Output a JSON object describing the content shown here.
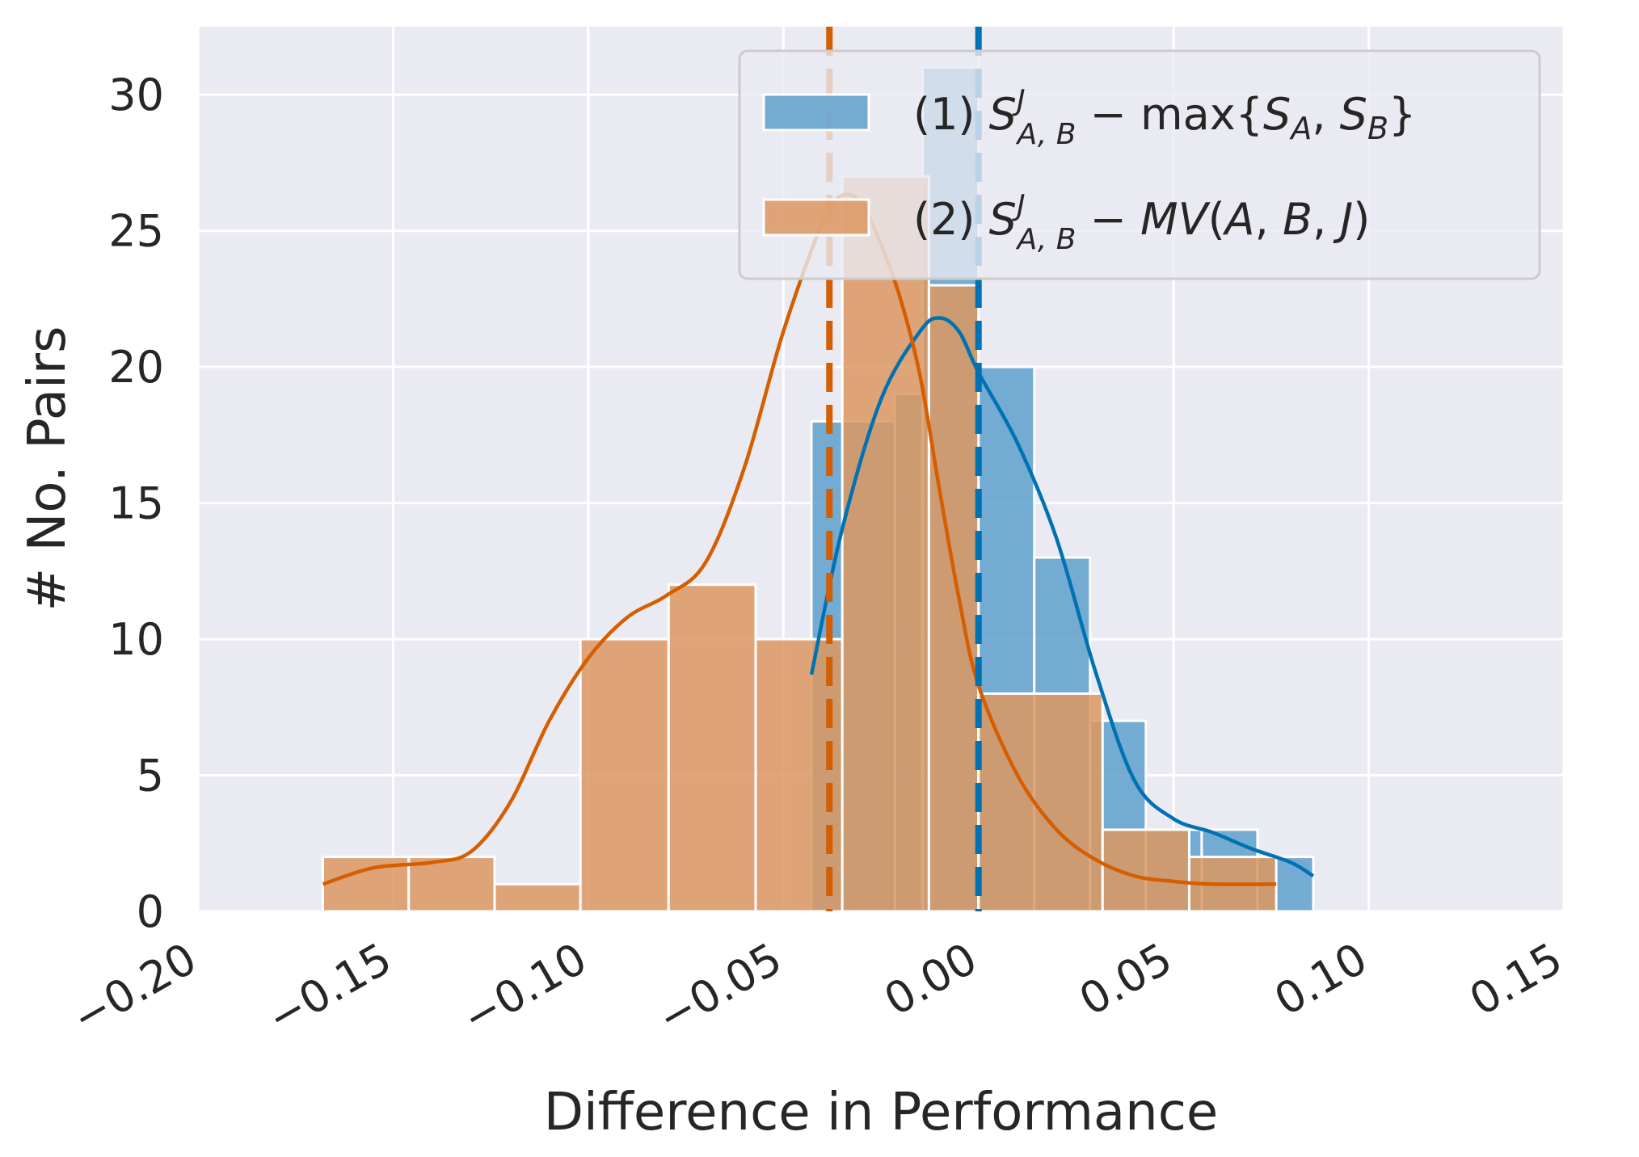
{
  "chart_data": {
    "type": "histogram",
    "title": "",
    "xlabel": "Difference in Performance",
    "ylabel": "# No. Pairs",
    "xlim": [
      -0.2,
      0.15
    ],
    "ylim": [
      0,
      32.5
    ],
    "grid": true,
    "legend_position": "top-right",
    "x_ticks": [
      -0.2,
      -0.15,
      -0.1,
      -0.05,
      0.0,
      0.05,
      0.1,
      0.15
    ],
    "x_tick_labels": [
      "−0.20",
      "−0.15",
      "−0.10",
      "−0.05",
      "0.00",
      "0.05",
      "0.10",
      "0.15"
    ],
    "y_ticks": [
      0,
      5,
      10,
      15,
      20,
      25,
      30
    ],
    "y_tick_labels": [
      "0",
      "5",
      "10",
      "15",
      "20",
      "25",
      "30"
    ],
    "series": [
      {
        "name": "(1) S^J_{A,B} − max{S_A, S_B}",
        "legend_parts": [
          "(1) ",
          "S",
          "J",
          "A, B",
          " − max{",
          "S",
          "A",
          ", ",
          "S",
          "B",
          "}"
        ],
        "color": "#0072B2",
        "bar_fill": "#5fa0cc",
        "bins": [
          {
            "x0": -0.0428,
            "x1": -0.0214,
            "count": 18
          },
          {
            "x0": -0.0214,
            "x1": -0.0143,
            "count": 19
          },
          {
            "x0": -0.0143,
            "x1": 0.0,
            "count": 31
          },
          {
            "x0": 0.0,
            "x1": 0.0143,
            "count": 20
          },
          {
            "x0": 0.0143,
            "x1": 0.0286,
            "count": 13
          },
          {
            "x0": 0.0286,
            "x1": 0.0429,
            "count": 7
          },
          {
            "x0": 0.0429,
            "x1": 0.0572,
            "count": 3
          },
          {
            "x0": 0.0572,
            "x1": 0.0715,
            "count": 3
          },
          {
            "x0": 0.0715,
            "x1": 0.0858,
            "count": 2
          }
        ],
        "kde": [
          [
            -0.0428,
            8.7
          ],
          [
            -0.035,
            14.0
          ],
          [
            -0.025,
            18.8
          ],
          [
            -0.015,
            21.3
          ],
          [
            -0.01,
            21.8
          ],
          [
            -0.005,
            21.3
          ],
          [
            0.0,
            19.8
          ],
          [
            0.01,
            17.2
          ],
          [
            0.02,
            13.7
          ],
          [
            0.03,
            8.8
          ],
          [
            0.04,
            4.8
          ],
          [
            0.05,
            3.4
          ],
          [
            0.06,
            2.9
          ],
          [
            0.07,
            2.3
          ],
          [
            0.08,
            1.8
          ],
          [
            0.0858,
            1.3
          ]
        ],
        "mean": 0.0
      },
      {
        "name": "(2) S^J_{A,B} − MV(A, B, J)",
        "legend_parts": [
          "(2) ",
          "S",
          "J",
          "A, B",
          " − ",
          "MV",
          "(",
          "A",
          ", ",
          "B",
          ", ",
          "J",
          ")"
        ],
        "color": "#D55E00",
        "bar_fill": "#dc9861",
        "bins": [
          {
            "x0": -0.168,
            "x1": -0.146,
            "count": 2
          },
          {
            "x0": -0.146,
            "x1": -0.124,
            "count": 2
          },
          {
            "x0": -0.124,
            "x1": -0.102,
            "count": 1
          },
          {
            "x0": -0.102,
            "x1": -0.0794,
            "count": 10
          },
          {
            "x0": -0.0794,
            "x1": -0.0571,
            "count": 12
          },
          {
            "x0": -0.0571,
            "x1": -0.0349,
            "count": 10
          },
          {
            "x0": -0.0349,
            "x1": -0.0127,
            "count": 27
          },
          {
            "x0": -0.0127,
            "x1": 0.0,
            "count": 23
          },
          {
            "x0": 0.0,
            "x1": 0.0318,
            "count": 8
          },
          {
            "x0": 0.0318,
            "x1": 0.054,
            "count": 3
          },
          {
            "x0": 0.054,
            "x1": 0.0763,
            "count": 2
          }
        ],
        "kde": [
          [
            -0.168,
            1.0
          ],
          [
            -0.155,
            1.6
          ],
          [
            -0.14,
            1.8
          ],
          [
            -0.13,
            2.2
          ],
          [
            -0.12,
            4.0
          ],
          [
            -0.11,
            7.0
          ],
          [
            -0.1,
            9.3
          ],
          [
            -0.09,
            10.8
          ],
          [
            -0.08,
            11.6
          ],
          [
            -0.07,
            12.8
          ],
          [
            -0.06,
            16.3
          ],
          [
            -0.05,
            21.3
          ],
          [
            -0.04,
            25.3
          ],
          [
            -0.035,
            26.3
          ],
          [
            -0.03,
            26.0
          ],
          [
            -0.025,
            24.5
          ],
          [
            -0.02,
            22.5
          ],
          [
            -0.015,
            19.7
          ],
          [
            -0.01,
            15.5
          ],
          [
            -0.005,
            11.5
          ],
          [
            0.0,
            8.3
          ],
          [
            0.01,
            5.0
          ],
          [
            0.02,
            3.0
          ],
          [
            0.03,
            1.9
          ],
          [
            0.04,
            1.3
          ],
          [
            0.05,
            1.1
          ],
          [
            0.06,
            1.0
          ],
          [
            0.0763,
            1.0
          ]
        ],
        "mean": -0.0382
      }
    ]
  }
}
